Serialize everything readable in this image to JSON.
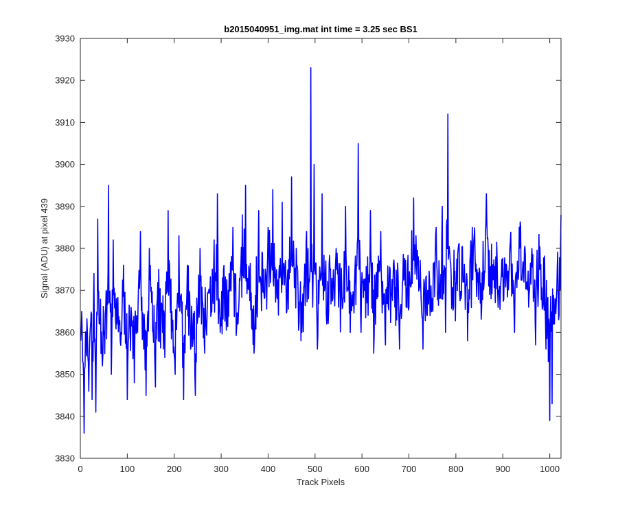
{
  "chart_data": {
    "type": "line",
    "title": "b2015040951_img.mat int time = 3.25 sec   BS1",
    "xlabel": "Track Pixels",
    "ylabel": "Signal (ADU) at pixel 439",
    "xlim": [
      0,
      1024
    ],
    "ylim": [
      3830,
      3930
    ],
    "xticks": [
      0,
      100,
      200,
      300,
      400,
      500,
      600,
      700,
      800,
      900,
      1000
    ],
    "xtick_labels": [
      "0",
      "100",
      "200",
      "300",
      "400",
      "500",
      "600",
      "700",
      "800",
      "900",
      "1000"
    ],
    "yticks": [
      3830,
      3840,
      3850,
      3860,
      3870,
      3880,
      3890,
      3900,
      3910,
      3920,
      3930
    ],
    "ytick_labels": [
      "3830",
      "3840",
      "3850",
      "3860",
      "3870",
      "3880",
      "3890",
      "3900",
      "3910",
      "3920",
      "3930"
    ],
    "grid": false,
    "series_color": "#0000ff",
    "n_points": 1024,
    "x_start": 1,
    "x_step": 1,
    "anchors": [
      [
        1,
        3858
      ],
      [
        3,
        3865
      ],
      [
        5,
        3853
      ],
      [
        8,
        3836
      ],
      [
        12,
        3858
      ],
      [
        18,
        3846
      ],
      [
        22,
        3862
      ],
      [
        25,
        3844
      ],
      [
        29,
        3874
      ],
      [
        33,
        3841
      ],
      [
        37,
        3887
      ],
      [
        42,
        3862
      ],
      [
        47,
        3852
      ],
      [
        55,
        3870
      ],
      [
        60,
        3895
      ],
      [
        66,
        3850
      ],
      [
        70,
        3882
      ],
      [
        78,
        3862
      ],
      [
        85,
        3858
      ],
      [
        92,
        3876
      ],
      [
        100,
        3844
      ],
      [
        108,
        3866
      ],
      [
        115,
        3848
      ],
      [
        120,
        3864
      ],
      [
        128,
        3884
      ],
      [
        135,
        3856
      ],
      [
        140,
        3845
      ],
      [
        147,
        3880
      ],
      [
        155,
        3860
      ],
      [
        160,
        3847
      ],
      [
        167,
        3875
      ],
      [
        175,
        3860
      ],
      [
        180,
        3854
      ],
      [
        187,
        3889
      ],
      [
        195,
        3865
      ],
      [
        202,
        3850
      ],
      [
        210,
        3883
      ],
      [
        220,
        3844
      ],
      [
        228,
        3876
      ],
      [
        235,
        3856
      ],
      [
        245,
        3845
      ],
      [
        255,
        3880
      ],
      [
        265,
        3855
      ],
      [
        275,
        3870
      ],
      [
        285,
        3882
      ],
      [
        292,
        3893
      ],
      [
        298,
        3860
      ],
      [
        305,
        3875
      ],
      [
        315,
        3870
      ],
      [
        325,
        3885
      ],
      [
        335,
        3862
      ],
      [
        345,
        3888
      ],
      [
        352,
        3895
      ],
      [
        360,
        3874
      ],
      [
        370,
        3855
      ],
      [
        380,
        3889
      ],
      [
        390,
        3875
      ],
      [
        400,
        3885
      ],
      [
        410,
        3894
      ],
      [
        420,
        3868
      ],
      [
        430,
        3891
      ],
      [
        440,
        3865
      ],
      [
        450,
        3897
      ],
      [
        460,
        3880
      ],
      [
        470,
        3858
      ],
      [
        482,
        3884
      ],
      [
        488,
        3872
      ],
      [
        491,
        3923
      ],
      [
        495,
        3866
      ],
      [
        498,
        3900
      ],
      [
        505,
        3856
      ],
      [
        515,
        3893
      ],
      [
        525,
        3862
      ],
      [
        535,
        3870
      ],
      [
        545,
        3880
      ],
      [
        555,
        3868
      ],
      [
        565,
        3890
      ],
      [
        575,
        3860
      ],
      [
        585,
        3875
      ],
      [
        592,
        3905
      ],
      [
        598,
        3860
      ],
      [
        605,
        3870
      ],
      [
        612,
        3878
      ],
      [
        618,
        3889
      ],
      [
        625,
        3855
      ],
      [
        632,
        3868
      ],
      [
        640,
        3884
      ],
      [
        650,
        3857
      ],
      [
        660,
        3875
      ],
      [
        670,
        3866
      ],
      [
        680,
        3856
      ],
      [
        690,
        3875
      ],
      [
        700,
        3866
      ],
      [
        710,
        3892
      ],
      [
        720,
        3878
      ],
      [
        730,
        3856
      ],
      [
        740,
        3870
      ],
      [
        750,
        3866
      ],
      [
        758,
        3885
      ],
      [
        765,
        3872
      ],
      [
        771,
        3890
      ],
      [
        778,
        3860
      ],
      [
        783,
        3912
      ],
      [
        788,
        3877
      ],
      [
        795,
        3866
      ],
      [
        805,
        3880
      ],
      [
        815,
        3872
      ],
      [
        825,
        3858
      ],
      [
        835,
        3885
      ],
      [
        845,
        3875
      ],
      [
        855,
        3866
      ],
      [
        865,
        3893
      ],
      [
        875,
        3868
      ],
      [
        885,
        3878
      ],
      [
        895,
        3870
      ],
      [
        905,
        3875
      ],
      [
        915,
        3880
      ],
      [
        925,
        3860
      ],
      [
        935,
        3885
      ],
      [
        945,
        3872
      ],
      [
        955,
        3866
      ],
      [
        962,
        3880
      ],
      [
        970,
        3857
      ],
      [
        978,
        3875
      ],
      [
        985,
        3866
      ],
      [
        992,
        3856
      ],
      [
        997,
        3853
      ],
      [
        1000,
        3839
      ],
      [
        1005,
        3843
      ],
      [
        1010,
        3862
      ],
      [
        1015,
        3870
      ],
      [
        1019,
        3863
      ],
      [
        1024,
        3888
      ]
    ],
    "noise_amplitude": 7,
    "seed": 439
  }
}
